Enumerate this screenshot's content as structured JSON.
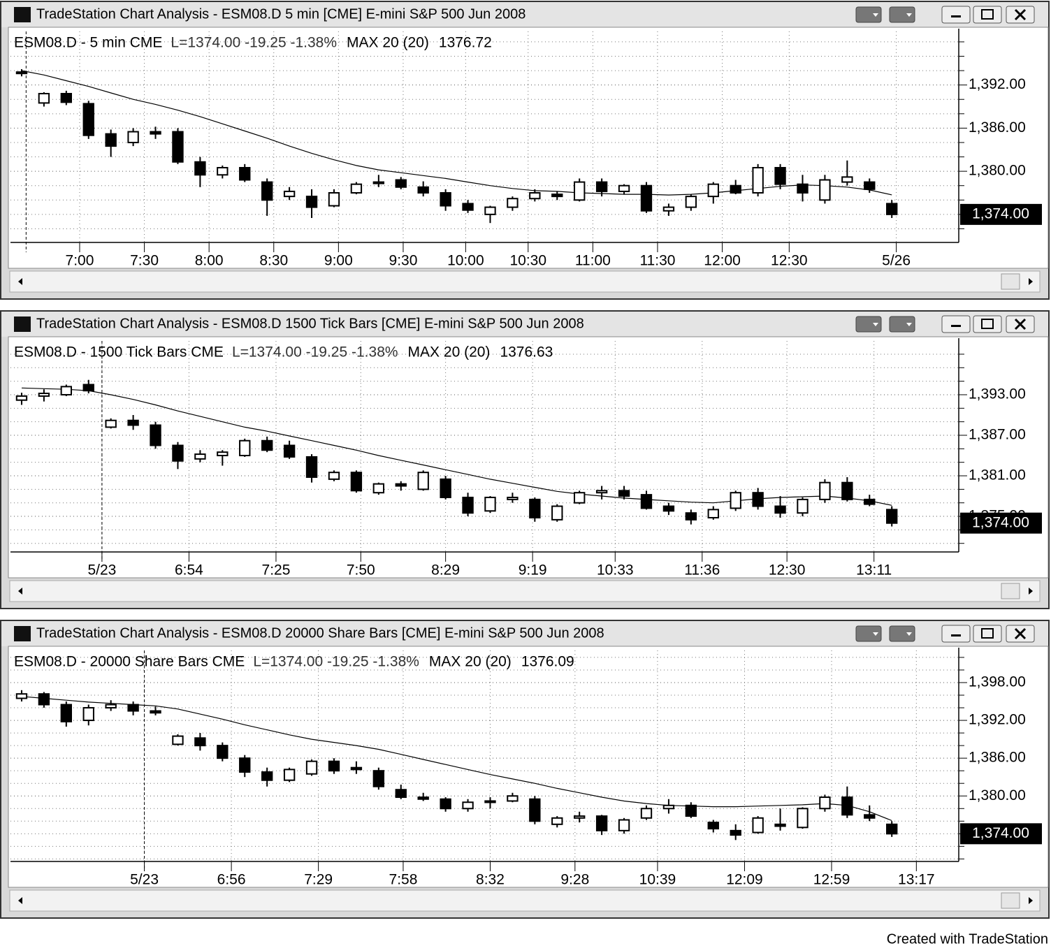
{
  "chart_data": [
    {
      "type": "candlestick",
      "window_title": "TradeStation Chart Analysis - ESM08.D 5 min [CME] E-mini S&P 500 Jun 2008",
      "legend": {
        "symbol": "ESM08.D - 5 min CME",
        "quote": "L=1374.00 -19.25 -1.38%",
        "study": "MAX 20 (20)",
        "study_value": 1376.72
      },
      "ylim": [
        1370.1,
        1399.45
      ],
      "yticks": [
        {
          "value": 1392,
          "label": "1,392.00"
        },
        {
          "value": 1386,
          "label": "1,386.00"
        },
        {
          "value": 1380,
          "label": "1,380.00"
        }
      ],
      "minor_yticks": [
        1372,
        1374,
        1376,
        1378,
        1382,
        1384,
        1388,
        1390,
        1394,
        1396,
        1398
      ],
      "xlim": [
        -0.5,
        42
      ],
      "xticks": [
        {
          "value": 2.6,
          "label": "7:00"
        },
        {
          "value": 5.5,
          "label": "7:30"
        },
        {
          "value": 8.4,
          "label": "8:00"
        },
        {
          "value": 11.3,
          "label": "8:30"
        },
        {
          "value": 14.2,
          "label": "9:00"
        },
        {
          "value": 17.1,
          "label": "9:30"
        },
        {
          "value": 19.9,
          "label": "10:00"
        },
        {
          "value": 22.7,
          "label": "10:30"
        },
        {
          "value": 25.6,
          "label": "11:00"
        },
        {
          "value": 28.5,
          "label": "11:30"
        },
        {
          "value": 31.4,
          "label": "12:00"
        },
        {
          "value": 34.4,
          "label": "12:30"
        },
        {
          "value": 39.2,
          "label": "5/26"
        }
      ],
      "session_break": 0.2,
      "last": {
        "value": 1374,
        "label": "1,374.00"
      },
      "open": [
        1393.6,
        1389.5,
        1390.8,
        1389.4,
        1385.2,
        1384.0,
        1385.5,
        1385.5,
        1381.3,
        1379.5,
        1380.5,
        1378.5,
        1376.5,
        1376.5,
        1375.2,
        1377.0,
        1378.3,
        1378.8,
        1377.8,
        1377.0,
        1375.5,
        1374.0,
        1375.0,
        1376.2,
        1376.8,
        1376.0,
        1378.5,
        1377.2,
        1378.0,
        1374.5,
        1375.0,
        1376.5,
        1378.0,
        1377.0,
        1380.5,
        1378.2,
        1376.0,
        1378.5,
        1378.5,
        1375.5
      ],
      "high": [
        1394.2,
        1391.0,
        1391.2,
        1389.8,
        1385.8,
        1386.0,
        1386.2,
        1386.0,
        1382.0,
        1380.8,
        1381.0,
        1379.0,
        1377.8,
        1377.5,
        1377.5,
        1378.5,
        1379.5,
        1379.2,
        1378.6,
        1377.5,
        1376.0,
        1375.2,
        1376.5,
        1377.5,
        1377.2,
        1379.0,
        1379.0,
        1378.2,
        1378.5,
        1375.5,
        1376.8,
        1378.5,
        1378.8,
        1381.0,
        1381.0,
        1379.5,
        1379.5,
        1381.5,
        1379.0,
        1376.0
      ],
      "low": [
        1393.2,
        1389.0,
        1389.2,
        1384.5,
        1382.0,
        1383.5,
        1384.5,
        1381.0,
        1377.8,
        1379.0,
        1378.5,
        1373.8,
        1376.0,
        1373.5,
        1375.0,
        1376.8,
        1377.8,
        1377.5,
        1376.5,
        1374.5,
        1374.2,
        1372.8,
        1374.5,
        1375.8,
        1376.0,
        1375.8,
        1376.5,
        1376.8,
        1374.2,
        1373.8,
        1374.5,
        1375.5,
        1376.8,
        1376.5,
        1377.5,
        1375.8,
        1375.5,
        1378.0,
        1377.0,
        1373.5
      ],
      "close": [
        1393.8,
        1390.8,
        1389.6,
        1385.0,
        1383.5,
        1385.5,
        1385.2,
        1381.3,
        1379.5,
        1380.5,
        1378.8,
        1376.0,
        1377.2,
        1375.0,
        1377.0,
        1378.2,
        1378.5,
        1377.8,
        1377.0,
        1375.2,
        1374.6,
        1375.0,
        1376.2,
        1377.0,
        1376.5,
        1378.5,
        1377.2,
        1378.0,
        1374.5,
        1375.0,
        1376.5,
        1378.2,
        1377.0,
        1380.5,
        1378.2,
        1377.0,
        1378.8,
        1379.2,
        1377.5,
        1374.0
      ],
      "ma": [
        1394.0,
        1393.4,
        1392.6,
        1391.8,
        1390.9,
        1390.0,
        1389.3,
        1388.5,
        1387.6,
        1386.6,
        1385.6,
        1384.6,
        1383.5,
        1382.5,
        1381.6,
        1380.8,
        1380.2,
        1379.8,
        1379.4,
        1379.0,
        1378.5,
        1378.0,
        1377.6,
        1377.3,
        1377.2,
        1377.0,
        1376.9,
        1376.8,
        1376.8,
        1376.7,
        1376.8,
        1377.0,
        1377.3,
        1377.6,
        1377.9,
        1378.1,
        1378.0,
        1377.8,
        1377.4,
        1376.72
      ]
    },
    {
      "type": "candlestick",
      "window_title": "TradeStation Chart Analysis - ESM08.D 1500 Tick Bars [CME] E-mini S&P 500 Jun 2008",
      "legend": {
        "symbol": "ESM08.D - 1500 Tick Bars CME",
        "quote": "L=1374.00 -19.25 -1.38%",
        "study": "MAX 20 (20)",
        "study_value": 1376.63
      },
      "ylim": [
        1369.73,
        1400.96
      ],
      "yticks": [
        {
          "value": 1393,
          "label": "1,393.00"
        },
        {
          "value": 1387,
          "label": "1,387.00"
        },
        {
          "value": 1381,
          "label": "1,381.00"
        },
        {
          "value": 1375,
          "label": "1,375.00"
        }
      ],
      "minor_yticks": [
        1371,
        1373,
        1377,
        1379,
        1383,
        1385,
        1389,
        1391,
        1395,
        1397,
        1399
      ],
      "xlim": [
        -0.5,
        42
      ],
      "xticks": [
        {
          "value": 3.6,
          "label": "5/23"
        },
        {
          "value": 7.5,
          "label": "6:54"
        },
        {
          "value": 11.4,
          "label": "7:25"
        },
        {
          "value": 15.2,
          "label": "7:50"
        },
        {
          "value": 19.0,
          "label": "8:29"
        },
        {
          "value": 22.9,
          "label": "9:19"
        },
        {
          "value": 26.6,
          "label": "10:33"
        },
        {
          "value": 30.5,
          "label": "11:36"
        },
        {
          "value": 34.3,
          "label": "12:30"
        },
        {
          "value": 38.2,
          "label": "13:11"
        }
      ],
      "session_break": 3.6,
      "last": {
        "value": 1374,
        "label": "1,374.00"
      },
      "open": [
        1392.2,
        1392.8,
        1393.0,
        1394.5,
        1388.2,
        1389.2,
        1388.5,
        1385.5,
        1383.5,
        1384.0,
        1384.0,
        1386.2,
        1385.5,
        1383.8,
        1380.5,
        1381.5,
        1378.5,
        1379.8,
        1379.0,
        1380.5,
        1377.8,
        1375.8,
        1377.5,
        1377.5,
        1374.5,
        1377.0,
        1378.5,
        1378.8,
        1378.2,
        1376.5,
        1375.5,
        1374.8,
        1376.2,
        1378.5,
        1376.5,
        1375.5,
        1377.5,
        1380.0,
        1377.5,
        1376.0
      ],
      "high": [
        1393.3,
        1393.8,
        1394.5,
        1395.2,
        1389.5,
        1390.0,
        1389.0,
        1386.0,
        1384.8,
        1384.8,
        1386.5,
        1386.8,
        1386.2,
        1384.2,
        1381.8,
        1381.8,
        1380.0,
        1380.2,
        1381.8,
        1381.0,
        1378.5,
        1378.0,
        1378.5,
        1377.8,
        1376.8,
        1378.8,
        1379.5,
        1379.5,
        1378.8,
        1377.0,
        1376.0,
        1376.5,
        1378.8,
        1379.2,
        1378.0,
        1377.8,
        1380.5,
        1380.8,
        1378.2,
        1376.5
      ],
      "low": [
        1391.5,
        1392.0,
        1392.8,
        1393.2,
        1388.0,
        1387.8,
        1385.0,
        1382.0,
        1383.0,
        1382.5,
        1383.8,
        1384.5,
        1383.5,
        1380.0,
        1380.2,
        1378.5,
        1378.2,
        1378.8,
        1378.8,
        1377.5,
        1375.0,
        1375.5,
        1377.0,
        1374.2,
        1374.2,
        1376.8,
        1377.5,
        1377.5,
        1376.0,
        1375.2,
        1373.8,
        1374.5,
        1375.8,
        1376.0,
        1374.8,
        1375.0,
        1377.0,
        1377.2,
        1376.5,
        1373.5
      ],
      "close": [
        1392.8,
        1393.2,
        1394.2,
        1393.6,
        1389.2,
        1388.5,
        1385.5,
        1383.2,
        1384.2,
        1384.5,
        1386.2,
        1384.8,
        1383.8,
        1380.8,
        1381.5,
        1378.8,
        1379.8,
        1379.5,
        1381.5,
        1377.8,
        1375.5,
        1377.8,
        1377.8,
        1374.8,
        1376.5,
        1378.5,
        1378.8,
        1378.0,
        1376.2,
        1375.8,
        1374.5,
        1376.0,
        1378.5,
        1376.5,
        1375.5,
        1377.5,
        1380.0,
        1377.5,
        1376.8,
        1374.0
      ],
      "ma": [
        1394.0,
        1393.9,
        1393.8,
        1393.6,
        1393.0,
        1392.3,
        1391.5,
        1390.6,
        1389.8,
        1389.0,
        1388.2,
        1387.6,
        1386.9,
        1386.2,
        1385.5,
        1384.8,
        1384.0,
        1383.3,
        1382.6,
        1381.9,
        1381.2,
        1380.5,
        1379.9,
        1379.3,
        1378.7,
        1378.3,
        1378.0,
        1377.7,
        1377.5,
        1377.3,
        1377.1,
        1377.0,
        1377.3,
        1377.6,
        1377.8,
        1377.9,
        1378.0,
        1377.7,
        1377.3,
        1376.63
      ]
    },
    {
      "type": "candlestick",
      "window_title": "TradeStation Chart Analysis - ESM08.D 20000 Share Bars [CME] E-mini S&P 500 Jun 2008",
      "legend": {
        "symbol": "ESM08.D - 20000 Share Bars CME",
        "quote": "L=1374.00 -19.25 -1.38%",
        "study": "MAX 20 (20)",
        "study_value": 1376.09
      },
      "ylim": [
        1369.6,
        1403.1
      ],
      "yticks": [
        {
          "value": 1398,
          "label": "1,398.00"
        },
        {
          "value": 1392,
          "label": "1,392.00"
        },
        {
          "value": 1386,
          "label": "1,386.00"
        },
        {
          "value": 1380,
          "label": "1,380.00"
        }
      ],
      "minor_yticks": [
        1370,
        1372,
        1374,
        1376,
        1378,
        1382,
        1384,
        1388,
        1390,
        1394,
        1396,
        1400,
        1402
      ],
      "xlim": [
        -0.5,
        42
      ],
      "xticks": [
        {
          "value": 5.5,
          "label": "5/23"
        },
        {
          "value": 9.4,
          "label": "6:56"
        },
        {
          "value": 13.3,
          "label": "7:29"
        },
        {
          "value": 17.1,
          "label": "7:58"
        },
        {
          "value": 21.0,
          "label": "8:32"
        },
        {
          "value": 24.8,
          "label": "9:28"
        },
        {
          "value": 28.5,
          "label": "10:39"
        },
        {
          "value": 32.4,
          "label": "12:09"
        },
        {
          "value": 36.3,
          "label": "12:59"
        },
        {
          "value": 40.1,
          "label": "13:17"
        }
      ],
      "session_break": 5.5,
      "last": {
        "value": 1374,
        "label": "1,374.00"
      },
      "open": [
        1395.5,
        1396.2,
        1394.5,
        1392.0,
        1394.0,
        1394.5,
        1393.5,
        1388.2,
        1389.2,
        1388.0,
        1386.0,
        1383.8,
        1382.5,
        1383.5,
        1385.5,
        1384.5,
        1384.0,
        1381.0,
        1379.8,
        1379.5,
        1378.0,
        1379.0,
        1379.2,
        1379.5,
        1375.5,
        1376.5,
        1376.8,
        1374.5,
        1376.5,
        1378.0,
        1378.5,
        1375.8,
        1374.5,
        1374.2,
        1375.5,
        1375.0,
        1378.0,
        1379.8,
        1377.0,
        1375.5
      ],
      "high": [
        1396.8,
        1396.5,
        1395.0,
        1394.5,
        1395.2,
        1395.0,
        1394.2,
        1389.8,
        1390.0,
        1388.5,
        1386.5,
        1384.5,
        1384.5,
        1385.8,
        1386.0,
        1385.5,
        1384.5,
        1381.8,
        1380.5,
        1379.8,
        1379.5,
        1379.8,
        1380.5,
        1380.0,
        1376.8,
        1377.5,
        1377.0,
        1376.5,
        1378.5,
        1379.5,
        1379.0,
        1376.2,
        1375.5,
        1376.8,
        1378.0,
        1378.2,
        1380.2,
        1381.5,
        1378.5,
        1376.0
      ],
      "low": [
        1395.0,
        1394.0,
        1391.0,
        1391.2,
        1393.5,
        1392.8,
        1392.8,
        1388.0,
        1387.2,
        1385.5,
        1383.0,
        1381.5,
        1382.2,
        1383.2,
        1383.5,
        1383.5,
        1381.0,
        1379.5,
        1379.2,
        1377.5,
        1377.5,
        1378.0,
        1379.0,
        1375.5,
        1375.0,
        1375.8,
        1373.8,
        1374.0,
        1376.2,
        1377.2,
        1376.5,
        1374.2,
        1373.0,
        1374.0,
        1374.5,
        1374.8,
        1377.5,
        1376.5,
        1376.0,
        1373.5
      ],
      "close": [
        1396.2,
        1394.5,
        1391.8,
        1394.0,
        1394.5,
        1393.5,
        1393.2,
        1389.5,
        1388.0,
        1386.0,
        1383.8,
        1382.5,
        1384.2,
        1385.5,
        1384.0,
        1384.2,
        1381.5,
        1379.8,
        1379.5,
        1378.0,
        1379.0,
        1379.2,
        1380.0,
        1376.0,
        1376.5,
        1376.8,
        1374.5,
        1376.2,
        1378.0,
        1378.5,
        1376.8,
        1374.8,
        1373.8,
        1376.5,
        1375.2,
        1378.0,
        1379.8,
        1377.0,
        1376.5,
        1374.0
      ],
      "ma": [
        1395.8,
        1395.5,
        1395.2,
        1394.9,
        1394.7,
        1394.5,
        1394.3,
        1393.8,
        1393.0,
        1392.2,
        1391.3,
        1390.5,
        1389.7,
        1389.0,
        1388.5,
        1388.0,
        1387.4,
        1386.6,
        1385.8,
        1385.0,
        1384.2,
        1383.4,
        1382.7,
        1382.0,
        1381.2,
        1380.5,
        1379.8,
        1379.2,
        1378.8,
        1378.5,
        1378.4,
        1378.3,
        1378.3,
        1378.4,
        1378.5,
        1378.6,
        1378.8,
        1378.5,
        1377.5,
        1376.09
      ]
    }
  ],
  "footer": "Created with TradeStation"
}
